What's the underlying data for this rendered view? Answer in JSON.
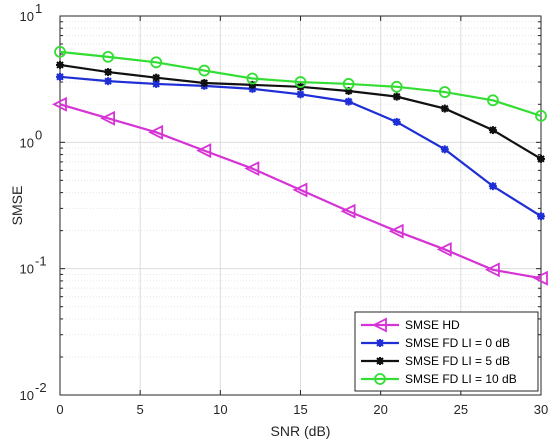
{
  "chart_data": {
    "type": "line",
    "title": "",
    "xlabel": "SNR (dB)",
    "ylabel": "SMSE",
    "xlim": [
      0,
      30
    ],
    "ylim": [
      0.01,
      10
    ],
    "yscale": "log",
    "grid": true,
    "legend_position": "bottom-right",
    "x_ticks": [
      0,
      5,
      10,
      15,
      20,
      25,
      30
    ],
    "x_tick_labels": [
      "0",
      "5",
      "10",
      "15",
      "20",
      "25",
      "30"
    ],
    "y_ticks": [
      0.01,
      0.1,
      1,
      10
    ],
    "y_tick_labels": [
      {
        "base": "10",
        "exp": "-2"
      },
      {
        "base": "10",
        "exp": "-1"
      },
      {
        "base": "10",
        "exp": "0"
      },
      {
        "base": "10",
        "exp": "1"
      }
    ],
    "x": [
      0,
      3,
      6,
      9,
      12,
      15,
      18,
      21,
      24,
      27,
      30
    ],
    "series": [
      {
        "name": "SMSE HD",
        "color": "#d633d6",
        "marker": "triangle-left",
        "values": [
          2.0,
          1.55,
          1.2,
          0.86,
          0.62,
          0.42,
          0.285,
          0.198,
          0.142,
          0.098,
          0.084
        ]
      },
      {
        "name": "SMSE FD LI = 0 dB",
        "color": "#1f2fd6",
        "marker": "asterisk",
        "values": [
          3.3,
          3.05,
          2.9,
          2.8,
          2.65,
          2.4,
          2.1,
          1.45,
          0.88,
          0.45,
          0.26
        ]
      },
      {
        "name": "SMSE FD LI = 5 dB",
        "color": "#111111",
        "marker": "asterisk",
        "values": [
          4.1,
          3.6,
          3.25,
          2.95,
          2.85,
          2.75,
          2.55,
          2.3,
          1.85,
          1.25,
          0.74
        ]
      },
      {
        "name": "SMSE FD LI = 10 dB",
        "color": "#33dd33",
        "marker": "circle",
        "values": [
          5.2,
          4.75,
          4.3,
          3.7,
          3.2,
          3.0,
          2.9,
          2.75,
          2.5,
          2.15,
          1.62
        ]
      }
    ]
  }
}
